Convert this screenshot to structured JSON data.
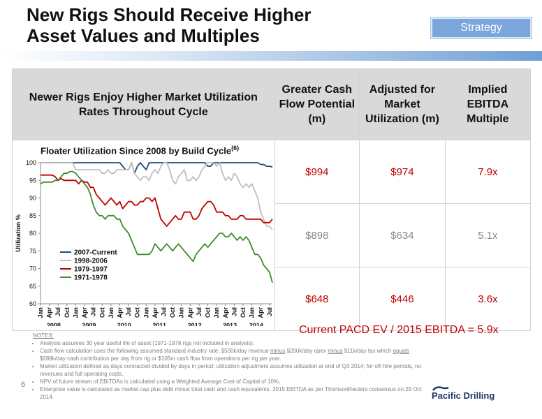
{
  "slide": {
    "title_line1": "New Rigs Should Receive Higher",
    "title_line2": "Asset Values and Multiples",
    "badge": "Strategy",
    "page_number": "6"
  },
  "table": {
    "headers": [
      "Newer Rigs Enjoy Higher Market Utilization Rates Throughout Cycle",
      "Greater Cash Flow Potential (m)",
      "Adjusted for Market Utilization (m)",
      "Implied EBITDA Multiple"
    ],
    "rows": [
      {
        "cash_flow": "$994",
        "adjusted": "$974",
        "multiple": "7.9x",
        "color": "#c00000"
      },
      {
        "cash_flow": "$898",
        "adjusted": "$634",
        "multiple": "5.1x",
        "color": "#8a8a8a"
      },
      {
        "cash_flow": "$648",
        "adjusted": "$446",
        "multiple": "3.6x",
        "color": "#c00000"
      }
    ]
  },
  "summary": "Current PACD EV / 2015 EBITDA = 5.9x",
  "notes": {
    "heading": "NOTES:",
    "items": [
      [
        "Analysis assumes 30 year useful life of asset (1971-1978 rigs not included in analysis)."
      ],
      [
        "Cash flow calculation uses the following assumed standard industry rate: $500k/day revenue ",
        {
          "u": "minus"
        },
        " $200k/day opex ",
        {
          "u": "minus"
        },
        " $11k/day tax which ",
        {
          "u": "equals"
        },
        " $289k/day cash contribution per day from rig or $105m cash flow from operations per rig per year."
      ],
      [
        "Market utilization defined as days contracted divided by days in period; utilization adjustment assumes utilization at end of Q3 2014; for off-hire periods, no revenues and full operating costs."
      ],
      [
        "NPV of future stream of EBITDAs is calculated using a Weighted Average Cost of Capital of 10%."
      ],
      [
        "Enterprise value is calculated as market cap plus debt minus total cash and cash equivalents.  2015 EBITDA as per ThomsonReuters consensus on 29 Oct 2014."
      ]
    ]
  },
  "logo": {
    "text": "Pacific Drilling",
    "color": "#1f3864"
  },
  "chart_data": {
    "type": "line",
    "title": "Floater Utilization Since 2008 by Build Cycle",
    "title_superscript": "(6)",
    "ylabel": "Utilization %",
    "ylim": [
      60,
      100
    ],
    "yticks": [
      60,
      65,
      70,
      75,
      80,
      85,
      90,
      95,
      100
    ],
    "xtick_labels": [
      "Jan",
      "Apr",
      "Jul",
      "Oct",
      "Jan",
      "Apr",
      "Jul",
      "Oct",
      "Jan",
      "Apr",
      "Jul",
      "Oct",
      "Jan",
      "Apr",
      "Jul",
      "Oct",
      "Jan",
      "Apr",
      "Jul",
      "Oct",
      "Jan",
      "Apr",
      "Jul",
      "Oct",
      "Jan",
      "Apr",
      "Jul"
    ],
    "year_labels": [
      {
        "label": "2008",
        "month_index": 4.5
      },
      {
        "label": "2009",
        "month_index": 16.5
      },
      {
        "label": "2010",
        "month_index": 28.5
      },
      {
        "label": "2011",
        "month_index": 40.5
      },
      {
        "label": "2012",
        "month_index": 52.5
      },
      {
        "label": "2013",
        "month_index": 64.5
      },
      {
        "label": "2014",
        "month_index": 73.5
      }
    ],
    "legend_placement": "lower-left",
    "series": [
      {
        "name": "2007-Current",
        "color": "#1f4e79",
        "values": [
          100,
          100,
          100,
          100,
          100,
          100,
          100,
          100,
          100,
          100,
          100,
          100,
          100,
          100,
          100,
          100,
          100,
          100,
          100,
          100,
          100,
          100,
          100,
          100,
          100,
          100,
          100,
          100,
          99,
          98,
          98,
          100,
          97,
          99,
          100,
          99,
          98,
          100,
          100,
          100,
          100,
          100,
          100,
          100,
          100,
          100,
          100,
          100,
          100,
          100,
          100,
          100,
          100,
          100,
          100,
          100,
          100,
          99,
          99,
          100,
          100,
          100,
          100,
          100,
          100,
          100,
          100,
          100,
          100,
          100,
          100,
          100,
          100,
          100,
          100,
          99.5,
          99.5,
          99,
          99,
          98.8
        ]
      },
      {
        "name": "1998-2006",
        "color": "#bfbfbf",
        "values": [
          100,
          100,
          100,
          100,
          100,
          100,
          100,
          100,
          100,
          100,
          100,
          100,
          98,
          98,
          98,
          98,
          98,
          98,
          98,
          98,
          98,
          97,
          97,
          98,
          97,
          97,
          98,
          98,
          98,
          98,
          98,
          100,
          97,
          96,
          95,
          96,
          96,
          95,
          97,
          98,
          97,
          99,
          100,
          100,
          98,
          95,
          94,
          96,
          97,
          98,
          95,
          95,
          96,
          95,
          96,
          98,
          99,
          100,
          100,
          100,
          99,
          100,
          97,
          95,
          96,
          95,
          97,
          96,
          94,
          93,
          94,
          93,
          94,
          92,
          90,
          86,
          84,
          82,
          82,
          81
        ]
      },
      {
        "name": "1979-1997",
        "color": "#c00000",
        "values": [
          96.5,
          96.5,
          96.5,
          96.5,
          96.5,
          96,
          95,
          95.5,
          95,
          95,
          95,
          95,
          95,
          94,
          95,
          94.5,
          94.5,
          93,
          93,
          91,
          90,
          89,
          88,
          89,
          90,
          89,
          88,
          89,
          87,
          88,
          89,
          89,
          88,
          88,
          89,
          89,
          90,
          90,
          89,
          90,
          87,
          84,
          83,
          82,
          83,
          84,
          85,
          84,
          84,
          86,
          86,
          86,
          84,
          84,
          85,
          87,
          88,
          89,
          89,
          88,
          86,
          86,
          86,
          85,
          85,
          84,
          84,
          84,
          85,
          85,
          84,
          84,
          84,
          84,
          84,
          84,
          83,
          83,
          83,
          84
        ]
      },
      {
        "name": "1971-1978",
        "color": "#3d8b2a",
        "values": [
          94,
          94.5,
          94.5,
          94.5,
          94.5,
          95,
          95,
          96,
          97,
          97,
          97.5,
          97.5,
          97,
          96,
          95,
          94,
          93,
          91,
          88,
          86,
          85,
          85,
          84,
          85,
          85,
          85,
          84,
          84,
          82,
          81,
          80,
          78,
          76,
          74,
          74,
          74,
          74,
          74,
          75,
          77,
          76,
          75,
          76,
          77,
          76,
          75,
          76,
          77,
          76,
          75,
          74,
          73,
          72,
          74,
          75,
          76,
          77,
          76,
          77,
          78,
          79,
          80,
          80,
          79,
          79,
          80,
          79,
          78,
          79,
          78,
          79,
          78,
          76,
          74,
          74,
          73,
          71,
          70,
          69,
          66
        ]
      }
    ]
  }
}
